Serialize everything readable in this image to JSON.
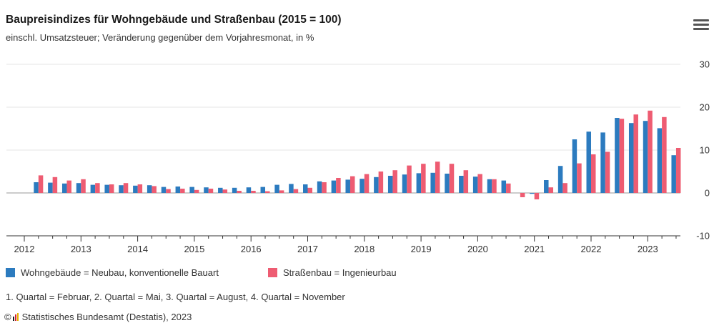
{
  "header": {
    "title": "Baupreisindizes für Wohngebäude und Straßenbau (2015 = 100)",
    "subtitle": "einschl. Umsatzsteuer; Veränderung gegenüber dem Vorjahresmonat, in %"
  },
  "menu": {
    "icon": "hamburger-menu-icon"
  },
  "colors": {
    "series1": "#2c7bbf",
    "series2": "#ee5c72",
    "grid": "#e6e6e6",
    "axis": "#333333"
  },
  "chart_data": {
    "type": "bar",
    "ylim": [
      -10,
      30
    ],
    "yticks": [
      -10,
      0,
      10,
      20,
      30
    ],
    "year_labels": [
      "2012",
      "2013",
      "2014",
      "2015",
      "2016",
      "2017",
      "2018",
      "2019",
      "2020",
      "2021",
      "2022",
      "2023"
    ],
    "categories": [
      "2012 Q1",
      "2012 Q2",
      "2012 Q3",
      "2012 Q4",
      "2013 Q1",
      "2013 Q2",
      "2013 Q3",
      "2013 Q4",
      "2014 Q1",
      "2014 Q2",
      "2014 Q3",
      "2014 Q4",
      "2015 Q1",
      "2015 Q2",
      "2015 Q3",
      "2015 Q4",
      "2016 Q1",
      "2016 Q2",
      "2016 Q3",
      "2016 Q4",
      "2017 Q1",
      "2017 Q2",
      "2017 Q3",
      "2017 Q4",
      "2018 Q1",
      "2018 Q2",
      "2018 Q3",
      "2018 Q4",
      "2019 Q1",
      "2019 Q2",
      "2019 Q3",
      "2019 Q4",
      "2020 Q1",
      "2020 Q2",
      "2020 Q3",
      "2020 Q4",
      "2021 Q1",
      "2021 Q2",
      "2021 Q3",
      "2021 Q4",
      "2022 Q1",
      "2022 Q2",
      "2022 Q3",
      "2022 Q4",
      "2023 Q1",
      "2023 Q2"
    ],
    "series": [
      {
        "name": "Wohngebäude = Neubau, konventionelle Bauart",
        "values": [
          2.5,
          2.4,
          2.2,
          2.3,
          1.9,
          1.9,
          1.8,
          1.7,
          1.8,
          1.4,
          1.5,
          1.4,
          1.3,
          1.2,
          1.2,
          1.3,
          1.4,
          1.9,
          2.1,
          2.0,
          2.7,
          2.9,
          3.1,
          3.3,
          3.7,
          4.0,
          4.3,
          4.6,
          4.7,
          4.5,
          4.0,
          3.8,
          3.2,
          2.9,
          0.0,
          -0.2,
          3.0,
          6.3,
          12.5,
          14.3,
          14.1,
          17.5,
          16.3,
          16.8,
          15.1,
          8.8
        ]
      },
      {
        "name": "Straßenbau = Ingenieurbau",
        "values": [
          4.1,
          3.7,
          2.9,
          3.2,
          2.3,
          2.0,
          2.3,
          2.0,
          1.6,
          0.9,
          1.0,
          0.7,
          1.0,
          0.8,
          0.5,
          0.5,
          0.4,
          0.6,
          0.9,
          1.2,
          2.5,
          3.5,
          3.9,
          4.4,
          5.0,
          5.3,
          6.4,
          6.8,
          7.3,
          6.8,
          5.3,
          4.4,
          3.2,
          2.2,
          -1.0,
          -1.5,
          1.3,
          2.3,
          6.9,
          9.0,
          9.6,
          17.3,
          18.3,
          19.2,
          17.7,
          10.5
        ]
      }
    ]
  },
  "legend": {
    "item1": "Wohngebäude = Neubau, konventionelle Bauart",
    "item2": "Straßenbau = Ingenieurbau"
  },
  "note": "1. Quartal = Februar, 2. Quartal = Mai, 3. Quartal = August, 4. Quartal = November",
  "source": {
    "copyright": "©",
    "text": "Statistisches Bundesamt (Destatis), 2023",
    "logo_icon": "destatis-logo-icon"
  }
}
